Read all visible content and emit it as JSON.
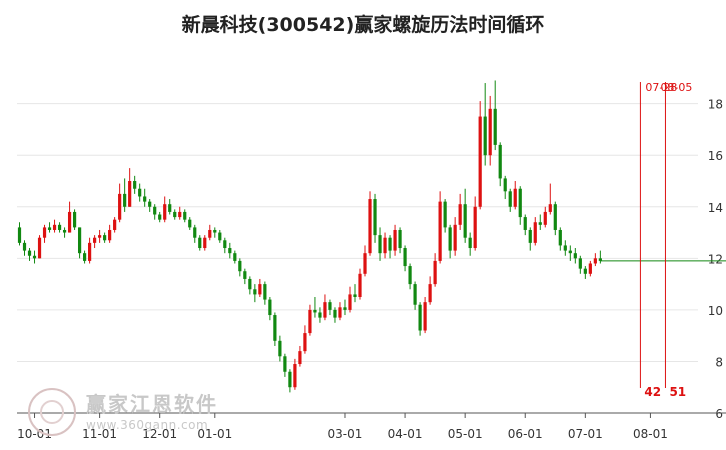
{
  "title": "新晨科技(300542)赢家螺旋历法时间循环",
  "watermark": {
    "name": "赢家江恩软件",
    "url": "www.360gann.com"
  },
  "colors": {
    "up": "#dd1111",
    "down": "#118811",
    "axis": "#555555",
    "grid": "#e6e6e6"
  },
  "chart_data": {
    "type": "candlestick",
    "ylim": [
      6,
      19.5
    ],
    "yticks": [
      6,
      8,
      10,
      12,
      14,
      16,
      18
    ],
    "xticks": [
      {
        "label": "10-01",
        "index": 3
      },
      {
        "label": "11-01",
        "index": 16
      },
      {
        "label": "12-01",
        "index": 28
      },
      {
        "label": "01-01",
        "index": 39
      },
      {
        "label": "03-01",
        "index": 65
      },
      {
        "label": "04-01",
        "index": 77
      },
      {
        "label": "05-01",
        "index": 89
      },
      {
        "label": "06-01",
        "index": 101
      },
      {
        "label": "07-01",
        "index": 113
      },
      {
        "label": "08-01",
        "index": 126
      }
    ],
    "total_slots": 136,
    "last_price": 11.9,
    "cycle_markers": [
      {
        "top_label": "07-28",
        "bottom_label": "42",
        "index": 124
      },
      {
        "top_label": "08-05",
        "bottom_label": "51",
        "index": 129
      }
    ],
    "candles": [
      [
        13.2,
        13.4,
        12.5,
        12.6
      ],
      [
        12.6,
        12.7,
        12.1,
        12.3
      ],
      [
        12.3,
        12.4,
        11.9,
        12.1
      ],
      [
        12.1,
        12.3,
        11.8,
        12.0
      ],
      [
        12.0,
        12.9,
        12.0,
        12.8
      ],
      [
        12.8,
        13.3,
        12.6,
        13.2
      ],
      [
        13.2,
        13.4,
        13.0,
        13.1
      ],
      [
        13.1,
        13.5,
        13.0,
        13.3
      ],
      [
        13.3,
        13.4,
        13.0,
        13.1
      ],
      [
        13.1,
        13.2,
        12.8,
        13.0
      ],
      [
        13.0,
        14.2,
        13.0,
        13.8
      ],
      [
        13.8,
        13.9,
        13.1,
        13.2
      ],
      [
        13.2,
        13.2,
        12.0,
        12.2
      ],
      [
        12.2,
        12.3,
        11.8,
        11.9
      ],
      [
        11.9,
        12.8,
        11.8,
        12.6
      ],
      [
        12.6,
        12.9,
        12.4,
        12.8
      ],
      [
        12.8,
        13.1,
        12.6,
        12.9
      ],
      [
        12.9,
        13.0,
        12.6,
        12.7
      ],
      [
        12.7,
        13.3,
        12.6,
        13.1
      ],
      [
        13.1,
        13.6,
        13.0,
        13.5
      ],
      [
        13.5,
        14.9,
        13.4,
        14.5
      ],
      [
        14.5,
        15.1,
        13.8,
        14.0
      ],
      [
        14.0,
        15.5,
        14.0,
        15.0
      ],
      [
        15.0,
        15.2,
        14.5,
        14.7
      ],
      [
        14.7,
        14.9,
        14.2,
        14.4
      ],
      [
        14.4,
        14.7,
        14.0,
        14.2
      ],
      [
        14.2,
        14.3,
        13.8,
        14.0
      ],
      [
        14.0,
        14.1,
        13.5,
        13.7
      ],
      [
        13.7,
        13.8,
        13.4,
        13.5
      ],
      [
        13.5,
        14.4,
        13.4,
        14.1
      ],
      [
        14.1,
        14.3,
        13.7,
        13.8
      ],
      [
        13.8,
        13.9,
        13.5,
        13.6
      ],
      [
        13.6,
        14.0,
        13.5,
        13.8
      ],
      [
        13.8,
        13.9,
        13.4,
        13.5
      ],
      [
        13.5,
        13.6,
        13.1,
        13.2
      ],
      [
        13.2,
        13.3,
        12.6,
        12.8
      ],
      [
        12.8,
        12.9,
        12.3,
        12.4
      ],
      [
        12.4,
        12.9,
        12.3,
        12.8
      ],
      [
        12.8,
        13.3,
        12.7,
        13.1
      ],
      [
        13.1,
        13.2,
        12.8,
        13.0
      ],
      [
        13.0,
        13.1,
        12.6,
        12.7
      ],
      [
        12.7,
        12.8,
        12.2,
        12.4
      ],
      [
        12.4,
        12.6,
        12.0,
        12.2
      ],
      [
        12.2,
        12.3,
        11.8,
        11.9
      ],
      [
        11.9,
        12.0,
        11.3,
        11.5
      ],
      [
        11.5,
        11.6,
        11.0,
        11.2
      ],
      [
        11.2,
        11.3,
        10.6,
        10.8
      ],
      [
        10.8,
        11.0,
        10.3,
        10.6
      ],
      [
        10.6,
        11.2,
        10.5,
        11.0
      ],
      [
        11.0,
        11.1,
        10.2,
        10.4
      ],
      [
        10.4,
        10.5,
        9.6,
        9.8
      ],
      [
        9.8,
        9.9,
        8.6,
        8.8
      ],
      [
        8.8,
        9.0,
        8.0,
        8.2
      ],
      [
        8.2,
        8.3,
        7.4,
        7.6
      ],
      [
        7.6,
        7.7,
        6.8,
        7.0
      ],
      [
        7.0,
        8.1,
        6.9,
        7.9
      ],
      [
        7.9,
        8.6,
        7.8,
        8.4
      ],
      [
        8.4,
        9.4,
        8.3,
        9.1
      ],
      [
        9.1,
        10.2,
        9.0,
        10.0
      ],
      [
        10.0,
        10.5,
        9.7,
        9.9
      ],
      [
        9.9,
        10.1,
        9.5,
        9.7
      ],
      [
        9.7,
        10.6,
        9.6,
        10.3
      ],
      [
        10.3,
        10.4,
        9.8,
        10.0
      ],
      [
        10.0,
        10.1,
        9.5,
        9.7
      ],
      [
        9.7,
        10.3,
        9.6,
        10.1
      ],
      [
        10.1,
        10.4,
        9.8,
        10.0
      ],
      [
        10.0,
        10.9,
        9.9,
        10.6
      ],
      [
        10.6,
        11.0,
        10.3,
        10.5
      ],
      [
        10.5,
        11.6,
        10.4,
        11.4
      ],
      [
        11.4,
        12.5,
        11.3,
        12.2
      ],
      [
        12.2,
        14.6,
        12.1,
        14.3
      ],
      [
        14.3,
        14.5,
        12.6,
        12.9
      ],
      [
        12.9,
        13.2,
        11.9,
        12.2
      ],
      [
        12.2,
        13.0,
        12.0,
        12.8
      ],
      [
        12.8,
        12.9,
        12.0,
        12.3
      ],
      [
        12.3,
        13.3,
        12.1,
        13.1
      ],
      [
        13.1,
        13.2,
        12.2,
        12.4
      ],
      [
        12.4,
        12.5,
        11.5,
        11.7
      ],
      [
        11.7,
        11.8,
        10.8,
        11.0
      ],
      [
        11.0,
        11.1,
        10.0,
        10.2
      ],
      [
        10.2,
        10.3,
        9.0,
        9.2
      ],
      [
        9.2,
        10.5,
        9.1,
        10.3
      ],
      [
        10.3,
        11.3,
        10.2,
        11.0
      ],
      [
        11.0,
        12.2,
        10.9,
        11.9
      ],
      [
        11.9,
        14.6,
        11.8,
        14.2
      ],
      [
        14.2,
        14.3,
        13.0,
        13.2
      ],
      [
        13.2,
        13.3,
        12.0,
        12.3
      ],
      [
        12.3,
        13.6,
        12.1,
        13.3
      ],
      [
        13.3,
        14.5,
        13.1,
        14.1
      ],
      [
        14.1,
        14.7,
        12.6,
        12.8
      ],
      [
        12.8,
        13.0,
        12.1,
        12.4
      ],
      [
        12.4,
        14.4,
        12.3,
        14.0
      ],
      [
        14.0,
        18.1,
        13.9,
        17.5
      ],
      [
        17.5,
        18.8,
        15.6,
        16.0
      ],
      [
        16.0,
        18.3,
        15.6,
        17.8
      ],
      [
        17.8,
        18.9,
        16.2,
        16.4
      ],
      [
        16.4,
        16.5,
        14.8,
        15.1
      ],
      [
        15.1,
        15.2,
        14.3,
        14.6
      ],
      [
        14.6,
        14.7,
        13.8,
        14.0
      ],
      [
        14.0,
        15.0,
        13.9,
        14.7
      ],
      [
        14.7,
        14.8,
        13.3,
        13.6
      ],
      [
        13.6,
        13.7,
        12.9,
        13.1
      ],
      [
        13.1,
        13.2,
        12.3,
        12.6
      ],
      [
        12.6,
        13.6,
        12.5,
        13.4
      ],
      [
        13.4,
        13.7,
        13.1,
        13.3
      ],
      [
        13.3,
        14.0,
        13.2,
        13.8
      ],
      [
        13.8,
        14.9,
        13.7,
        14.1
      ],
      [
        14.1,
        14.2,
        12.9,
        13.1
      ],
      [
        13.1,
        13.2,
        12.3,
        12.5
      ],
      [
        12.5,
        12.7,
        12.1,
        12.3
      ],
      [
        12.3,
        12.5,
        11.9,
        12.2
      ],
      [
        12.2,
        12.4,
        11.8,
        12.0
      ],
      [
        12.0,
        12.1,
        11.4,
        11.6
      ],
      [
        11.6,
        11.7,
        11.2,
        11.4
      ],
      [
        11.4,
        11.9,
        11.3,
        11.8
      ],
      [
        11.8,
        12.2,
        11.7,
        12.0
      ],
      [
        12.0,
        12.3,
        11.8,
        11.9
      ]
    ]
  }
}
